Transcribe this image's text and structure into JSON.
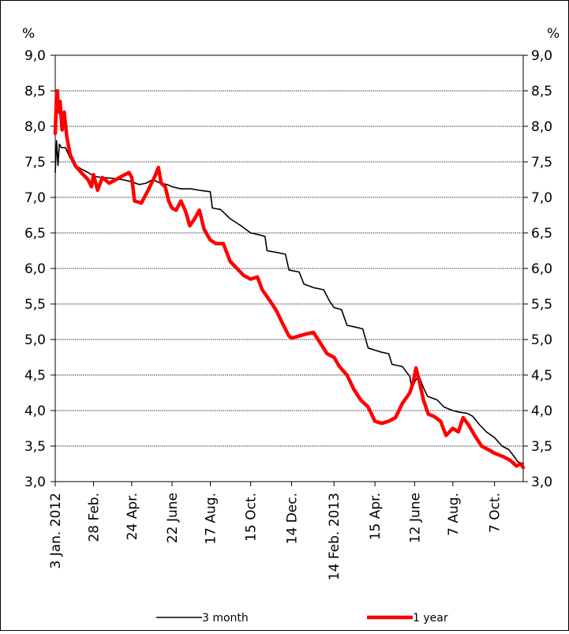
{
  "chart_data": {
    "type": "line",
    "y_unit_left": "%",
    "y_unit_right": "%",
    "ylim": [
      3.0,
      9.0
    ],
    "yticks": [
      "9,0",
      "8,5",
      "8,0",
      "7,5",
      "7,0",
      "6,5",
      "6,0",
      "5,5",
      "5,0",
      "4,5",
      "4,0",
      "3,5",
      "3,0"
    ],
    "ytick_values": [
      9.0,
      8.5,
      8.0,
      7.5,
      7.0,
      6.5,
      6.0,
      5.5,
      5.0,
      4.5,
      4.0,
      3.5,
      3.0
    ],
    "x_tick_labels": [
      "3 Jan. 2012",
      "28 Feb.",
      "24 Apr.",
      "22 June",
      "17 Aug.",
      "15 Oct.",
      "14 Dec.",
      "14 Feb. 2013",
      "15 Apr.",
      "12 June",
      "7 Aug.",
      "7 Oct."
    ],
    "x_tick_dates": [
      "2012-01-03",
      "2012-02-28",
      "2012-04-24",
      "2012-06-22",
      "2012-08-17",
      "2012-10-15",
      "2012-12-14",
      "2013-02-14",
      "2013-04-15",
      "2013-06-12",
      "2013-08-07",
      "2013-10-07"
    ],
    "x_range": [
      "2012-01-03",
      "2013-11-18"
    ],
    "grid": "horizontal",
    "legend_position": "bottom",
    "series": [
      {
        "name": "3 month",
        "color": "#000000",
        "points": [
          [
            "2012-01-03",
            7.35
          ],
          [
            "2012-01-05",
            7.8
          ],
          [
            "2012-01-07",
            7.45
          ],
          [
            "2012-01-09",
            7.75
          ],
          [
            "2012-01-12",
            7.7
          ],
          [
            "2012-01-18",
            7.7
          ],
          [
            "2012-01-25",
            7.55
          ],
          [
            "2012-02-02",
            7.45
          ],
          [
            "2012-02-10",
            7.4
          ],
          [
            "2012-02-20",
            7.35
          ],
          [
            "2012-02-28",
            7.3
          ],
          [
            "2012-03-10",
            7.28
          ],
          [
            "2012-03-25",
            7.27
          ],
          [
            "2012-04-10",
            7.25
          ],
          [
            "2012-04-24",
            7.22
          ],
          [
            "2012-05-05",
            7.18
          ],
          [
            "2012-05-15",
            7.2
          ],
          [
            "2012-05-25",
            7.25
          ],
          [
            "2012-06-05",
            7.2
          ],
          [
            "2012-06-15",
            7.18
          ],
          [
            "2012-06-22",
            7.15
          ],
          [
            "2012-07-05",
            7.12
          ],
          [
            "2012-07-20",
            7.12
          ],
          [
            "2012-08-01",
            7.1
          ],
          [
            "2012-08-17",
            7.08
          ],
          [
            "2012-08-20",
            6.85
          ],
          [
            "2012-09-01",
            6.83
          ],
          [
            "2012-09-15",
            6.7
          ],
          [
            "2012-10-01",
            6.6
          ],
          [
            "2012-10-15",
            6.5
          ],
          [
            "2012-10-25",
            6.48
          ],
          [
            "2012-11-05",
            6.45
          ],
          [
            "2012-11-08",
            6.25
          ],
          [
            "2012-11-25",
            6.22
          ],
          [
            "2012-12-05",
            6.2
          ],
          [
            "2012-12-10",
            5.98
          ],
          [
            "2012-12-14",
            5.97
          ],
          [
            "2012-12-25",
            5.95
          ],
          [
            "2013-01-01",
            5.78
          ],
          [
            "2013-01-15",
            5.73
          ],
          [
            "2013-01-30",
            5.7
          ],
          [
            "2013-02-07",
            5.55
          ],
          [
            "2013-02-14",
            5.45
          ],
          [
            "2013-02-25",
            5.42
          ],
          [
            "2013-03-05",
            5.2
          ],
          [
            "2013-03-15",
            5.18
          ],
          [
            "2013-03-28",
            5.15
          ],
          [
            "2013-04-05",
            4.88
          ],
          [
            "2013-04-15",
            4.85
          ],
          [
            "2013-04-25",
            4.82
          ],
          [
            "2013-05-05",
            4.8
          ],
          [
            "2013-05-10",
            4.65
          ],
          [
            "2013-05-25",
            4.62
          ],
          [
            "2013-06-05",
            4.48
          ],
          [
            "2013-06-08",
            4.3
          ],
          [
            "2013-06-12",
            4.4
          ],
          [
            "2013-06-18",
            4.5
          ],
          [
            "2013-06-25",
            4.32
          ],
          [
            "2013-07-01",
            4.2
          ],
          [
            "2013-07-15",
            4.15
          ],
          [
            "2013-07-25",
            4.05
          ],
          [
            "2013-08-07",
            4.0
          ],
          [
            "2013-08-15",
            3.98
          ],
          [
            "2013-08-28",
            3.96
          ],
          [
            "2013-09-05",
            3.92
          ],
          [
            "2013-09-15",
            3.8
          ],
          [
            "2013-09-25",
            3.7
          ],
          [
            "2013-10-07",
            3.62
          ],
          [
            "2013-10-18",
            3.5
          ],
          [
            "2013-10-28",
            3.45
          ],
          [
            "2013-11-05",
            3.35
          ],
          [
            "2013-11-10",
            3.28
          ],
          [
            "2013-11-18",
            3.25
          ]
        ]
      },
      {
        "name": "1 year",
        "color": "#ff0000",
        "points": [
          [
            "2012-01-03",
            7.9
          ],
          [
            "2012-01-05",
            8.45
          ],
          [
            "2012-01-06",
            8.5
          ],
          [
            "2012-01-08",
            8.2
          ],
          [
            "2012-01-10",
            8.35
          ],
          [
            "2012-01-13",
            7.95
          ],
          [
            "2012-01-16",
            8.2
          ],
          [
            "2012-01-20",
            7.85
          ],
          [
            "2012-01-25",
            7.6
          ],
          [
            "2012-02-01",
            7.45
          ],
          [
            "2012-02-10",
            7.35
          ],
          [
            "2012-02-20",
            7.25
          ],
          [
            "2012-02-25",
            7.15
          ],
          [
            "2012-02-28",
            7.32
          ],
          [
            "2012-03-05",
            7.1
          ],
          [
            "2012-03-12",
            7.28
          ],
          [
            "2012-03-22",
            7.2
          ],
          [
            "2012-04-01",
            7.25
          ],
          [
            "2012-04-10",
            7.3
          ],
          [
            "2012-04-20",
            7.35
          ],
          [
            "2012-04-24",
            7.28
          ],
          [
            "2012-04-28",
            6.95
          ],
          [
            "2012-05-08",
            6.92
          ],
          [
            "2012-05-18",
            7.1
          ],
          [
            "2012-05-28",
            7.3
          ],
          [
            "2012-06-02",
            7.42
          ],
          [
            "2012-06-06",
            7.2
          ],
          [
            "2012-06-12",
            7.15
          ],
          [
            "2012-06-17",
            6.95
          ],
          [
            "2012-06-22",
            6.85
          ],
          [
            "2012-06-28",
            6.82
          ],
          [
            "2012-07-05",
            6.95
          ],
          [
            "2012-07-12",
            6.8
          ],
          [
            "2012-07-18",
            6.6
          ],
          [
            "2012-07-25",
            6.7
          ],
          [
            "2012-08-01",
            6.82
          ],
          [
            "2012-08-08",
            6.55
          ],
          [
            "2012-08-17",
            6.4
          ],
          [
            "2012-08-25",
            6.35
          ],
          [
            "2012-09-05",
            6.35
          ],
          [
            "2012-09-15",
            6.1
          ],
          [
            "2012-09-25",
            6.0
          ],
          [
            "2012-10-05",
            5.9
          ],
          [
            "2012-10-15",
            5.85
          ],
          [
            "2012-10-25",
            5.88
          ],
          [
            "2012-11-01",
            5.7
          ],
          [
            "2012-11-12",
            5.55
          ],
          [
            "2012-11-22",
            5.4
          ],
          [
            "2012-12-01",
            5.22
          ],
          [
            "2012-12-10",
            5.05
          ],
          [
            "2012-12-14",
            5.02
          ],
          [
            "2012-12-25",
            5.05
          ],
          [
            "2013-01-05",
            5.08
          ],
          [
            "2013-01-15",
            5.1
          ],
          [
            "2013-01-25",
            4.95
          ],
          [
            "2013-02-04",
            4.8
          ],
          [
            "2013-02-14",
            4.75
          ],
          [
            "2013-02-22",
            4.62
          ],
          [
            "2013-03-05",
            4.5
          ],
          [
            "2013-03-15",
            4.3
          ],
          [
            "2013-03-25",
            4.15
          ],
          [
            "2013-04-05",
            4.05
          ],
          [
            "2013-04-15",
            3.85
          ],
          [
            "2013-04-25",
            3.82
          ],
          [
            "2013-05-05",
            3.85
          ],
          [
            "2013-05-15",
            3.9
          ],
          [
            "2013-05-25",
            4.1
          ],
          [
            "2013-06-05",
            4.25
          ],
          [
            "2013-06-10",
            4.4
          ],
          [
            "2013-06-14",
            4.6
          ],
          [
            "2013-06-18",
            4.45
          ],
          [
            "2013-06-25",
            4.15
          ],
          [
            "2013-07-02",
            3.95
          ],
          [
            "2013-07-10",
            3.92
          ],
          [
            "2013-07-20",
            3.85
          ],
          [
            "2013-07-28",
            3.65
          ],
          [
            "2013-08-07",
            3.75
          ],
          [
            "2013-08-15",
            3.7
          ],
          [
            "2013-08-22",
            3.9
          ],
          [
            "2013-08-30",
            3.8
          ],
          [
            "2013-09-08",
            3.65
          ],
          [
            "2013-09-18",
            3.5
          ],
          [
            "2013-09-28",
            3.45
          ],
          [
            "2013-10-07",
            3.4
          ],
          [
            "2013-10-20",
            3.35
          ],
          [
            "2013-10-30",
            3.3
          ],
          [
            "2013-11-08",
            3.22
          ],
          [
            "2013-11-14",
            3.25
          ],
          [
            "2013-11-18",
            3.2
          ]
        ]
      }
    ]
  }
}
